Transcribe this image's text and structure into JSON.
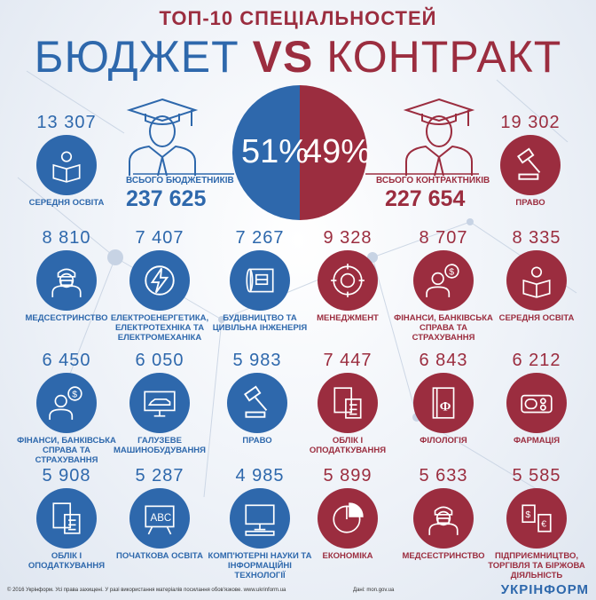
{
  "title": "ТОП-10 СПЕЦІАЛЬНОСТЕЙ",
  "subtitle_budget": "БЮДЖЕТ",
  "subtitle_vs": "VS",
  "subtitle_contract": "КОНТРАКТ",
  "pie": {
    "budget_percent": "51%",
    "contract_percent": "49%"
  },
  "totals": {
    "budget_label": "ВСЬОГО БЮДЖЕТНИКІВ",
    "budget_value": "237 625",
    "contract_label": "ВСЬОГО КОНТРАКТНИКІВ",
    "contract_value": "227 654"
  },
  "budget": [
    {
      "value": "13 307",
      "label": "СЕРЕДНЯ ОСВІТА",
      "icon": "reading-person-icon"
    },
    {
      "value": "8 810",
      "label": "МЕДСЕСТРИНСТВО",
      "icon": "nurse-icon"
    },
    {
      "value": "7 407",
      "label": "ЕЛЕКТРОЕНЕРГЕТИКА, ЕЛЕКТРОТЕХНІКА ТА ЕЛЕКТРОМЕХАНІКА",
      "icon": "lightning-icon"
    },
    {
      "value": "7 267",
      "label": "БУДІВНИЦТВО ТА ЦИВІЛЬНА ІНЖЕНЕРІЯ",
      "icon": "blueprint-icon"
    },
    {
      "value": "6 450",
      "label": "ФІНАНСИ, БАНКІВСЬКА СПРАВА ТА СТРАХУВАННЯ",
      "icon": "finance-person-icon"
    },
    {
      "value": "6 050",
      "label": "ГАЛУЗЕВЕ МАШИНОБУДУВАННЯ",
      "icon": "car-monitor-icon"
    },
    {
      "value": "5 983",
      "label": "ПРАВО",
      "icon": "gavel-icon"
    },
    {
      "value": "5 908",
      "label": "ОБЛІК І ОПОДАТКУВАННЯ",
      "icon": "calculator-icon"
    },
    {
      "value": "5 287",
      "label": "ПОЧАТКОВА ОСВІТА",
      "icon": "abc-board-icon"
    },
    {
      "value": "4 985",
      "label": "КОМП'ЮТЕРНІ НАУКИ ТА ІНФОРМАЦІЙНІ ТЕХНОЛОГІЇ",
      "icon": "computer-icon"
    }
  ],
  "contract": [
    {
      "value": "19 302",
      "label": "ПРАВО",
      "icon": "gavel-icon"
    },
    {
      "value": "9 328",
      "label": "МЕНЕДЖМЕНТ",
      "icon": "management-icon"
    },
    {
      "value": "8 707",
      "label": "ФІНАНСИ, БАНКІВСЬКА СПРАВА ТА СТРАХУВАННЯ",
      "icon": "finance-person-icon"
    },
    {
      "value": "8 335",
      "label": "СЕРЕДНЯ ОСВІТА",
      "icon": "reading-person-icon"
    },
    {
      "value": "7 447",
      "label": "ОБЛІК І ОПОДАТКУВАННЯ",
      "icon": "calculator-icon"
    },
    {
      "value": "6 843",
      "label": "ФІЛОЛОГІЯ",
      "icon": "book-icon"
    },
    {
      "value": "6 212",
      "label": "ФАРМАЦІЯ",
      "icon": "pills-icon"
    },
    {
      "value": "5 899",
      "label": "ЕКОНОМІКА",
      "icon": "pie-chart-icon"
    },
    {
      "value": "5 633",
      "label": "МЕДСЕСТРИНСТВО",
      "icon": "nurse-icon"
    },
    {
      "value": "5 585",
      "label": "ПІДПРИЄМНИЦТВО, ТОРГІВЛЯ ТА БІРЖОВА ДІЯЛЬНІСТЬ",
      "icon": "trade-icon"
    }
  ],
  "footer": {
    "copyright": "© 2016 Укрінформ. Усі права захищені. У разі використання матеріалів посилання обов'язкове. www.ukrinform.ua",
    "source": "Дані: mon.gov.ua",
    "brand": "УКРІНФОРМ"
  },
  "colors": {
    "blue": "#2e68ac",
    "red": "#9b2d3f"
  }
}
